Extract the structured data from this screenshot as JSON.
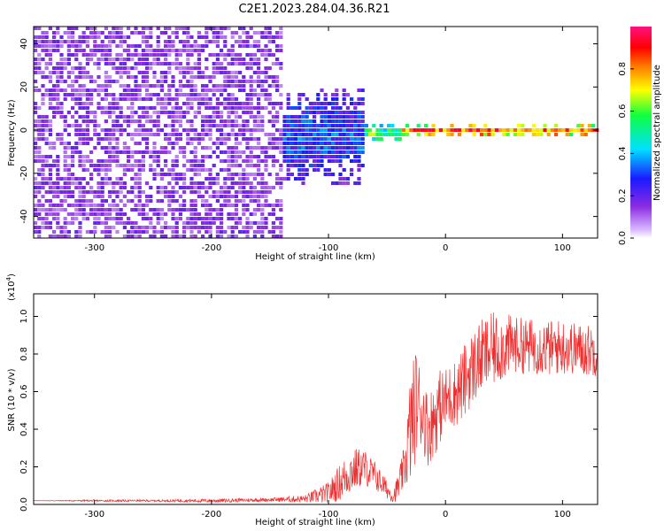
{
  "title": "C2E1.2023.284.04.36.R21",
  "chart_data": [
    {
      "type": "heatmap",
      "xlabel": "Height of straight line (km)",
      "ylabel": "Frequency (Hz)",
      "xlim": [
        -352,
        130
      ],
      "ylim": [
        -50,
        48
      ],
      "xticks": [
        -300,
        -200,
        -100,
        0,
        100
      ],
      "yticks": [
        -40,
        -20,
        0,
        20,
        40
      ],
      "colorbar": {
        "label": "Normalized spectral amplitude",
        "range": [
          0,
          1
        ],
        "ticks": [
          "0.0",
          "0.2",
          "0.4",
          "0.6",
          "0.8"
        ],
        "colormap": "rainbow (white-violet-blue-cyan-green-yellow-red-magenta)"
      },
      "regions": [
        {
          "x_range": [
            -352,
            -140
          ],
          "description": "broadband noise",
          "freq_range": [
            -50,
            48
          ],
          "amplitude": [
            0.0,
            0.2
          ]
        },
        {
          "x_range": [
            -140,
            -70
          ],
          "description": "noise narrowing toward 0 Hz",
          "freq_range": [
            -25,
            20
          ],
          "amplitude": [
            0.1,
            0.4
          ]
        },
        {
          "x_range": [
            -70,
            -40
          ],
          "description": "signal onset near 0 Hz",
          "freq_range": [
            -5,
            3
          ],
          "amplitude": [
            0.3,
            0.7
          ]
        },
        {
          "x_range": [
            -40,
            130
          ],
          "description": "narrow signal line near 0 Hz",
          "freq_range": [
            -2,
            3
          ],
          "amplitude": [
            0.5,
            1.0
          ]
        }
      ]
    },
    {
      "type": "line",
      "xlabel": "Height of straight line (km)",
      "ylabel": "SNR (10 * v/v)",
      "scale_label": "(x10",
      "scale_exp": "4",
      "scale_close": ")",
      "xlim": [
        -352,
        130
      ],
      "ylim": [
        0,
        1.12
      ],
      "xticks": [
        -300,
        -200,
        -100,
        0,
        100
      ],
      "yticks": [
        0.0,
        0.2,
        0.4,
        0.6,
        0.8,
        1.0
      ],
      "color": "#ef3030",
      "series": [
        {
          "x": [
            -350,
            -300,
            -250,
            -200,
            -150,
            -120,
            -100,
            -90,
            -80,
            -70,
            -60,
            -50,
            -45,
            -40,
            -35,
            -30,
            -25,
            -20,
            -15,
            -10,
            -5,
            0,
            5,
            10,
            15,
            20,
            25,
            30,
            40,
            50,
            60,
            70,
            80,
            90,
            100,
            110,
            120,
            130
          ],
          "y": [
            0.02,
            0.02,
            0.02,
            0.02,
            0.025,
            0.03,
            0.06,
            0.12,
            0.18,
            0.2,
            0.15,
            0.08,
            0.04,
            0.1,
            0.2,
            0.4,
            0.55,
            0.5,
            0.4,
            0.45,
            0.52,
            0.55,
            0.58,
            0.6,
            0.64,
            0.7,
            0.74,
            0.78,
            0.82,
            0.84,
            0.85,
            0.84,
            0.84,
            0.83,
            0.84,
            0.83,
            0.82,
            0.82
          ],
          "peak_noise": [
            0.0,
            0.005,
            0.005,
            0.01,
            0.01,
            0.02,
            0.06,
            0.1,
            0.12,
            0.1,
            0.08,
            0.05,
            0.03,
            0.08,
            0.12,
            0.3,
            0.3,
            0.2,
            0.2,
            0.2,
            0.2,
            0.18,
            0.18,
            0.18,
            0.2,
            0.2,
            0.2,
            0.2,
            0.2,
            0.18,
            0.15,
            0.15,
            0.15,
            0.15,
            0.15,
            0.14,
            0.14,
            0.14
          ]
        }
      ]
    }
  ]
}
